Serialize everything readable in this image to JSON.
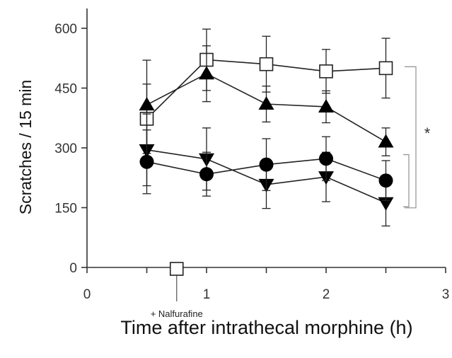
{
  "chart_data": {
    "type": "line",
    "title": "",
    "xlabel": "Time after intrathecal morphine (h)",
    "ylabel": "Scratches / 15 min",
    "xlim": [
      0,
      3
    ],
    "ylim": [
      0,
      600
    ],
    "x_ticks": [
      "0",
      "1",
      "2",
      "3"
    ],
    "y_ticks": [
      "0",
      "150",
      "300",
      "450",
      "600"
    ],
    "grid": false,
    "x": [
      0.5,
      1,
      1.5,
      2,
      2.5
    ],
    "series": [
      {
        "marker": "open-square",
        "values": [
          373,
          521,
          510,
          492,
          500
        ],
        "errors": [
          87,
          77,
          70,
          55,
          75
        ]
      },
      {
        "marker": "filled-triangle-up",
        "values": [
          408,
          486,
          410,
          403,
          315
        ],
        "errors": [
          112,
          70,
          45,
          40,
          35
        ]
      },
      {
        "marker": "filled-triangle-down",
        "values": [
          295,
          272,
          208,
          227,
          162
        ],
        "errors": [
          90,
          78,
          60,
          62,
          58
        ]
      },
      {
        "marker": "filled-circle",
        "values": [
          265,
          234,
          258,
          273,
          218
        ],
        "errors": [
          80,
          55,
          65,
          55,
          50
        ]
      }
    ],
    "annotation": {
      "label": "+ Nalfurafine",
      "x": 0.75,
      "marker": "open-square"
    },
    "significance": {
      "label": "*"
    },
    "colors": {
      "line": "#222222",
      "fill": "#000000",
      "open": "#ffffff"
    }
  }
}
